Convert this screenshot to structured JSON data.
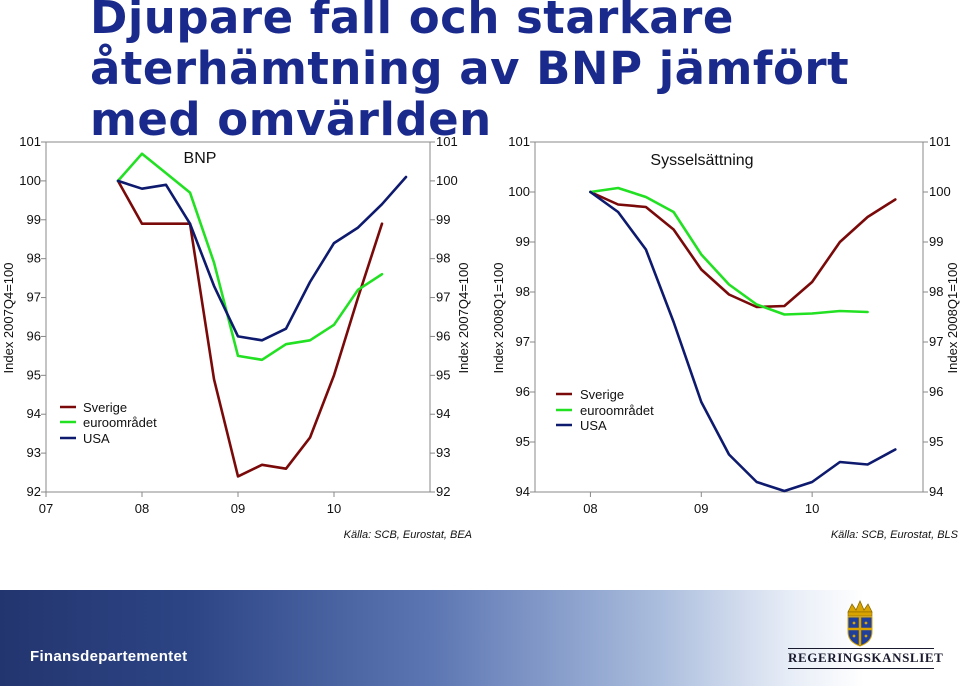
{
  "slide": {
    "title": "Djupare fall och starkare återhämtning av BNP jämfört med omvärlden",
    "footer_label": "Finansdepartementet",
    "logo_text": "REGERINGSKANSLIET"
  },
  "colors": {
    "sverige": "#7a0a0a",
    "euroomradet": "#22e022",
    "usa": "#0d1a6e",
    "title": "#1a2a8c"
  },
  "legend": [
    "Sverige",
    "euroområdet",
    "USA"
  ],
  "chart_data": [
    {
      "type": "line",
      "title": "BNP",
      "source": "Källa: SCB, Eurostat, BEA",
      "ylabel_left": "Index 2007Q4=100",
      "ylabel_right": "Index 2007Q4=100",
      "ylim": [
        92,
        101
      ],
      "yticks": [
        92,
        93,
        94,
        95,
        96,
        97,
        98,
        99,
        100,
        101
      ],
      "x": [
        2007.75,
        2008.0,
        2008.25,
        2008.5,
        2008.75,
        2009.0,
        2009.25,
        2009.5,
        2009.75,
        2010.0,
        2010.25,
        2010.5,
        2010.75
      ],
      "xlim": [
        2007.0,
        2011.0
      ],
      "xtick_labels": [
        {
          "x": 2007.0,
          "label": "07"
        },
        {
          "x": 2008.0,
          "label": "08"
        },
        {
          "x": 2009.0,
          "label": "09"
        },
        {
          "x": 2010.0,
          "label": "10"
        }
      ],
      "legend_position": "bottom-left",
      "series": [
        {
          "name": "Sverige",
          "color_key": "sverige",
          "values": [
            100.0,
            98.9,
            98.9,
            98.9,
            94.9,
            92.4,
            92.7,
            92.6,
            93.4,
            95.0,
            97.0,
            98.9,
            null
          ]
        },
        {
          "name": "euroområdet",
          "color_key": "euroomradet",
          "values": [
            100.0,
            100.7,
            100.2,
            99.7,
            97.9,
            95.5,
            95.4,
            95.8,
            95.9,
            96.3,
            97.2,
            97.6,
            null
          ]
        },
        {
          "name": "USA",
          "color_key": "usa",
          "values": [
            100.0,
            99.8,
            99.9,
            98.9,
            97.3,
            96.0,
            95.9,
            96.2,
            97.4,
            98.4,
            98.8,
            99.4,
            100.1
          ]
        }
      ]
    },
    {
      "type": "line",
      "title": "Sysselsättning",
      "source": "Källa: SCB, Eurostat, BLS",
      "ylabel_left": "Index 2008Q1=100",
      "ylabel_right": "Index 2008Q1=100",
      "ylim": [
        94,
        101
      ],
      "yticks": [
        94,
        95,
        96,
        97,
        98,
        99,
        100,
        101
      ],
      "x": [
        2008.0,
        2008.25,
        2008.5,
        2008.75,
        2009.0,
        2009.25,
        2009.5,
        2009.75,
        2010.0,
        2010.25,
        2010.5,
        2010.75
      ],
      "xlim": [
        2007.5,
        2011.0
      ],
      "xtick_labels": [
        {
          "x": 2008.0,
          "label": "08"
        },
        {
          "x": 2009.0,
          "label": "09"
        },
        {
          "x": 2010.0,
          "label": "10"
        }
      ],
      "legend_position": "bottom-left",
      "series": [
        {
          "name": "Sverige",
          "color_key": "sverige",
          "values": [
            100.0,
            99.75,
            99.7,
            99.25,
            98.45,
            97.95,
            97.7,
            97.72,
            98.2,
            99.0,
            99.5,
            99.85
          ]
        },
        {
          "name": "euroområdet",
          "color_key": "euroomradet",
          "values": [
            100.0,
            100.08,
            99.9,
            99.6,
            98.75,
            98.15,
            97.75,
            97.55,
            97.57,
            97.62,
            97.6,
            null
          ]
        },
        {
          "name": "USA",
          "color_key": "usa",
          "values": [
            100.0,
            99.6,
            98.85,
            97.4,
            95.8,
            94.75,
            94.2,
            94.02,
            94.2,
            94.6,
            94.55,
            94.85
          ]
        }
      ]
    }
  ]
}
